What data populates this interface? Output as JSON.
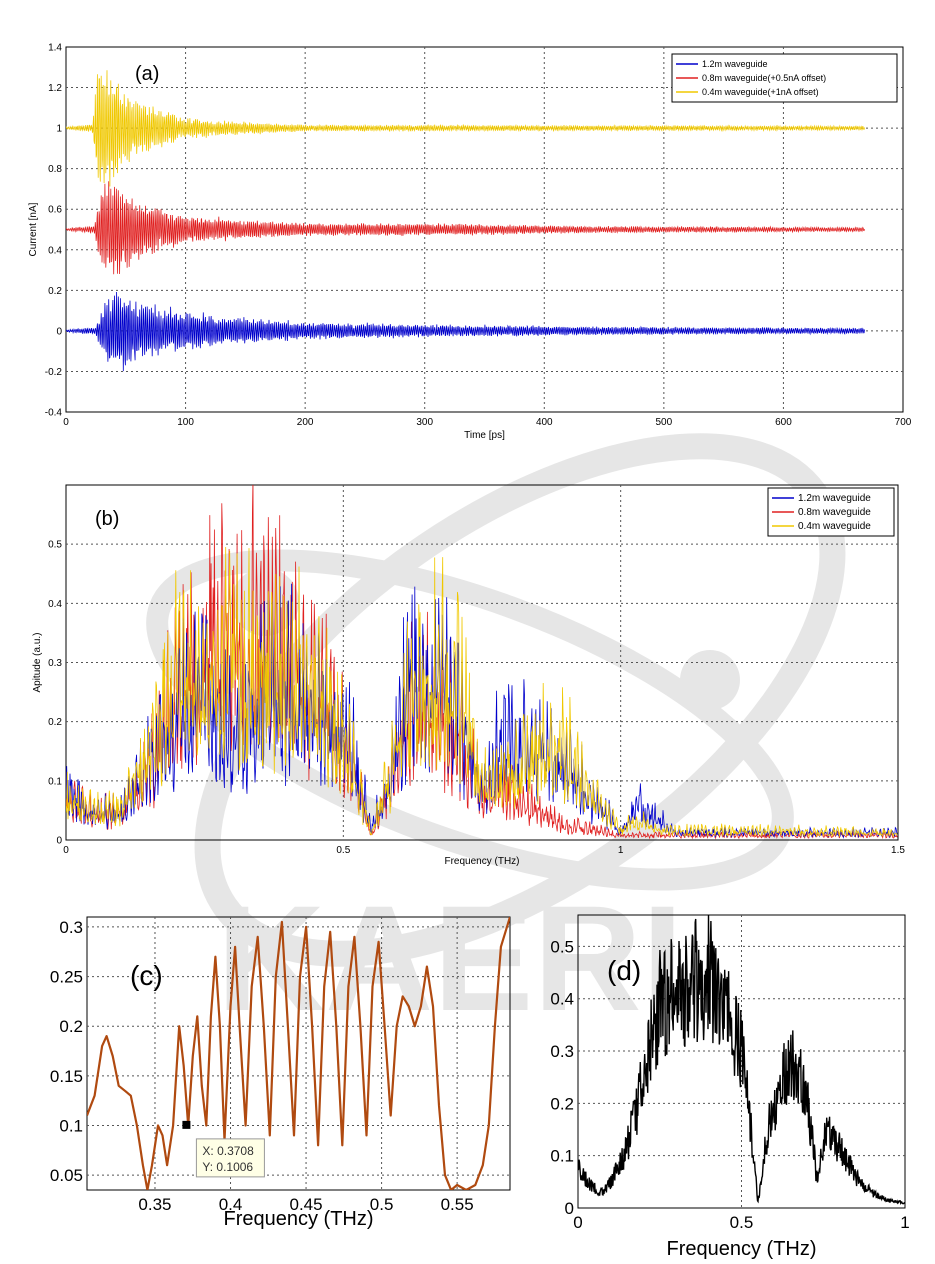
{
  "watermark": {
    "text": "KAERI"
  },
  "chart_data": [
    {
      "id": "a",
      "type": "line",
      "panel_label": "(a)",
      "xlabel": "Time [ps]",
      "ylabel": "Current [nA]",
      "xlim": [
        0,
        700
      ],
      "ylim": [
        -0.4,
        1.4
      ],
      "xticks": [
        0,
        100,
        200,
        300,
        400,
        500,
        600,
        700
      ],
      "yticks": [
        -0.4,
        -0.2,
        0,
        0.2,
        0.4,
        0.6,
        0.8,
        1,
        1.2,
        1.4
      ],
      "grid": true,
      "legend_position": "top-right",
      "series": [
        {
          "name": "1.2m waveguide",
          "color": "#0000cc",
          "offset": 0,
          "env": [
            [
              0,
              0.005
            ],
            [
              25,
              0.02
            ],
            [
              32,
              0.14
            ],
            [
              42,
              0.2
            ],
            [
              60,
              0.13
            ],
            [
              100,
              0.09
            ],
            [
              150,
              0.06
            ],
            [
              200,
              0.04
            ],
            [
              300,
              0.03
            ],
            [
              450,
              0.02
            ],
            [
              600,
              0.015
            ],
            [
              670,
              0.015
            ]
          ]
        },
        {
          "name": "0.8m waveguide(+0.5nA offset)",
          "color": "#e02020",
          "offset": 0.5,
          "env": [
            [
              0,
              0.005
            ],
            [
              24,
              0.02
            ],
            [
              30,
              0.22
            ],
            [
              38,
              0.24
            ],
            [
              60,
              0.14
            ],
            [
              100,
              0.07
            ],
            [
              150,
              0.045
            ],
            [
              200,
              0.03
            ],
            [
              300,
              0.03
            ],
            [
              450,
              0.015
            ],
            [
              670,
              0.01
            ]
          ]
        },
        {
          "name": "0.4m waveguide(+1nA offset)",
          "color": "#f0c800",
          "offset": 1,
          "env": [
            [
              0,
              0.005
            ],
            [
              22,
              0.02
            ],
            [
              28,
              0.34
            ],
            [
              36,
              0.3
            ],
            [
              55,
              0.14
            ],
            [
              100,
              0.05
            ],
            [
              150,
              0.03
            ],
            [
              200,
              0.015
            ],
            [
              300,
              0.015
            ],
            [
              670,
              0.01
            ]
          ]
        }
      ]
    },
    {
      "id": "b",
      "type": "line",
      "panel_label": "(b)",
      "xlabel": "Frequency (THz)",
      "ylabel": "Apitude (a.u.)",
      "xlim": [
        0,
        1.5
      ],
      "ylim": [
        0,
        0.6
      ],
      "xticks": [
        0,
        0.5,
        1,
        1.5
      ],
      "xtick_labels": [
        "0",
        "0.5",
        "1",
        "1.5"
      ],
      "yticks": [
        0,
        0.1,
        0.2,
        0.3,
        0.4,
        0.5
      ],
      "grid": true,
      "legend_position": "top-right",
      "series": [
        {
          "name": "1.2m waveguide",
          "color": "#0000cc",
          "env": [
            [
              0,
              0.1
            ],
            [
              0.05,
              0.06
            ],
            [
              0.1,
              0.05
            ],
            [
              0.15,
              0.16
            ],
            [
              0.2,
              0.24
            ],
            [
              0.25,
              0.3
            ],
            [
              0.3,
              0.2
            ],
            [
              0.35,
              0.28
            ],
            [
              0.4,
              0.3
            ],
            [
              0.45,
              0.28
            ],
            [
              0.5,
              0.23
            ],
            [
              0.53,
              0.12
            ],
            [
              0.55,
              0.02
            ],
            [
              0.58,
              0.12
            ],
            [
              0.62,
              0.32
            ],
            [
              0.65,
              0.35
            ],
            [
              0.7,
              0.27
            ],
            [
              0.75,
              0.1
            ],
            [
              0.78,
              0.18
            ],
            [
              0.8,
              0.2
            ],
            [
              0.85,
              0.18
            ],
            [
              0.9,
              0.16
            ],
            [
              0.95,
              0.08
            ],
            [
              1,
              0.02
            ],
            [
              1.03,
              0.07
            ],
            [
              1.07,
              0.04
            ],
            [
              1.1,
              0.015
            ],
            [
              1.5,
              0.015
            ]
          ]
        },
        {
          "name": "0.8m waveguide",
          "color": "#e02020",
          "env": [
            [
              0,
              0.08
            ],
            [
              0.05,
              0.05
            ],
            [
              0.1,
              0.06
            ],
            [
              0.15,
              0.14
            ],
            [
              0.2,
              0.3
            ],
            [
              0.25,
              0.38
            ],
            [
              0.3,
              0.42
            ],
            [
              0.35,
              0.44
            ],
            [
              0.4,
              0.35
            ],
            [
              0.45,
              0.3
            ],
            [
              0.5,
              0.2
            ],
            [
              0.53,
              0.1
            ],
            [
              0.55,
              0.01
            ],
            [
              0.58,
              0.1
            ],
            [
              0.62,
              0.25
            ],
            [
              0.65,
              0.28
            ],
            [
              0.7,
              0.23
            ],
            [
              0.75,
              0.08
            ],
            [
              0.78,
              0.12
            ],
            [
              0.82,
              0.08
            ],
            [
              0.87,
              0.05
            ],
            [
              0.9,
              0.03
            ],
            [
              1,
              0.01
            ],
            [
              1.5,
              0.01
            ]
          ]
        },
        {
          "name": "0.4m waveguide",
          "color": "#f0c800",
          "env": [
            [
              0,
              0.08
            ],
            [
              0.05,
              0.06
            ],
            [
              0.1,
              0.06
            ],
            [
              0.15,
              0.18
            ],
            [
              0.2,
              0.33
            ],
            [
              0.25,
              0.32
            ],
            [
              0.3,
              0.34
            ],
            [
              0.35,
              0.35
            ],
            [
              0.4,
              0.33
            ],
            [
              0.45,
              0.3
            ],
            [
              0.5,
              0.2
            ],
            [
              0.53,
              0.1
            ],
            [
              0.55,
              0.01
            ],
            [
              0.58,
              0.12
            ],
            [
              0.62,
              0.3
            ],
            [
              0.65,
              0.3
            ],
            [
              0.7,
              0.35
            ],
            [
              0.75,
              0.1
            ],
            [
              0.8,
              0.14
            ],
            [
              0.85,
              0.17
            ],
            [
              0.9,
              0.2
            ],
            [
              0.95,
              0.08
            ],
            [
              1,
              0.02
            ],
            [
              1.03,
              0.04
            ],
            [
              1.07,
              0.02
            ],
            [
              1.5,
              0.015
            ]
          ]
        }
      ]
    },
    {
      "id": "c",
      "type": "line",
      "panel_label": "(c)",
      "xlabel": "Frequency (THz)",
      "xlim": [
        0.305,
        0.585
      ],
      "ylim": [
        0.035,
        0.31
      ],
      "xticks": [
        0.35,
        0.4,
        0.45,
        0.5,
        0.55
      ],
      "xtick_labels": [
        "0.35",
        "0.4",
        "0.45",
        "0.5",
        "0.55"
      ],
      "yticks": [
        0.05,
        0.1,
        0.15,
        0.2,
        0.25,
        0.3
      ],
      "ytick_labels": [
        "0.05",
        "0.1",
        "0.15",
        "0.2",
        "0.25",
        "0.3"
      ],
      "grid": true,
      "series": [
        {
          "color": "#b04a10",
          "points": [
            [
              0.305,
              0.11
            ],
            [
              0.31,
              0.13
            ],
            [
              0.315,
              0.18
            ],
            [
              0.318,
              0.19
            ],
            [
              0.322,
              0.17
            ],
            [
              0.326,
              0.14
            ],
            [
              0.33,
              0.135
            ],
            [
              0.334,
              0.13
            ],
            [
              0.338,
              0.1
            ],
            [
              0.342,
              0.06
            ],
            [
              0.345,
              0.035
            ],
            [
              0.348,
              0.06
            ],
            [
              0.352,
              0.1
            ],
            [
              0.355,
              0.09
            ],
            [
              0.358,
              0.06
            ],
            [
              0.362,
              0.1
            ],
            [
              0.366,
              0.2
            ],
            [
              0.369,
              0.16
            ],
            [
              0.372,
              0.1
            ],
            [
              0.375,
              0.17
            ],
            [
              0.378,
              0.21
            ],
            [
              0.381,
              0.14
            ],
            [
              0.384,
              0.1
            ],
            [
              0.387,
              0.21
            ],
            [
              0.39,
              0.27
            ],
            [
              0.393,
              0.2
            ],
            [
              0.396,
              0.085
            ],
            [
              0.4,
              0.22
            ],
            [
              0.403,
              0.28
            ],
            [
              0.406,
              0.2
            ],
            [
              0.41,
              0.1
            ],
            [
              0.414,
              0.24
            ],
            [
              0.418,
              0.29
            ],
            [
              0.422,
              0.2
            ],
            [
              0.426,
              0.09
            ],
            [
              0.43,
              0.25
            ],
            [
              0.434,
              0.305
            ],
            [
              0.438,
              0.2
            ],
            [
              0.442,
              0.09
            ],
            [
              0.446,
              0.25
            ],
            [
              0.45,
              0.3
            ],
            [
              0.454,
              0.2
            ],
            [
              0.458,
              0.08
            ],
            [
              0.462,
              0.24
            ],
            [
              0.466,
              0.295
            ],
            [
              0.47,
              0.2
            ],
            [
              0.474,
              0.08
            ],
            [
              0.478,
              0.24
            ],
            [
              0.482,
              0.29
            ],
            [
              0.486,
              0.2
            ],
            [
              0.49,
              0.09
            ],
            [
              0.494,
              0.24
            ],
            [
              0.498,
              0.285
            ],
            [
              0.502,
              0.2
            ],
            [
              0.506,
              0.11
            ],
            [
              0.51,
              0.2
            ],
            [
              0.514,
              0.23
            ],
            [
              0.518,
              0.22
            ],
            [
              0.522,
              0.2
            ],
            [
              0.526,
              0.22
            ],
            [
              0.53,
              0.26
            ],
            [
              0.534,
              0.22
            ],
            [
              0.538,
              0.12
            ],
            [
              0.542,
              0.05
            ],
            [
              0.546,
              0.035
            ],
            [
              0.55,
              0.04
            ],
            [
              0.556,
              0.035
            ],
            [
              0.562,
              0.04
            ],
            [
              0.567,
              0.06
            ],
            [
              0.571,
              0.1
            ],
            [
              0.575,
              0.2
            ],
            [
              0.579,
              0.28
            ],
            [
              0.585,
              0.31
            ]
          ]
        }
      ],
      "marker": {
        "x": 0.3708,
        "y": 0.1006
      },
      "datatip": {
        "x_label": "X: 0.3708",
        "y_label": "Y: 0.1006"
      }
    },
    {
      "id": "d",
      "type": "line",
      "panel_label": "(d)",
      "xlabel": "Frequency (THz)",
      "xlim": [
        0,
        1
      ],
      "ylim": [
        0,
        0.56
      ],
      "xticks": [
        0,
        0.5,
        1
      ],
      "xtick_labels": [
        "0",
        "0.5",
        "1"
      ],
      "yticks": [
        0,
        0.1,
        0.2,
        0.3,
        0.4,
        0.5
      ],
      "ytick_labels": [
        "0",
        "0.1",
        "0.2",
        "0.3",
        "0.4",
        "0.5"
      ],
      "grid": true,
      "series": [
        {
          "color": "#000000",
          "env": [
            [
              0,
              0.08
            ],
            [
              0.03,
              0.05
            ],
            [
              0.07,
              0.03
            ],
            [
              0.1,
              0.05
            ],
            [
              0.15,
              0.12
            ],
            [
              0.2,
              0.25
            ],
            [
              0.25,
              0.4
            ],
            [
              0.3,
              0.42
            ],
            [
              0.35,
              0.45
            ],
            [
              0.4,
              0.45
            ],
            [
              0.45,
              0.38
            ],
            [
              0.5,
              0.3
            ],
            [
              0.53,
              0.15
            ],
            [
              0.55,
              0.01
            ],
            [
              0.58,
              0.15
            ],
            [
              0.62,
              0.25
            ],
            [
              0.65,
              0.3
            ],
            [
              0.7,
              0.22
            ],
            [
              0.73,
              0.06
            ],
            [
              0.76,
              0.15
            ],
            [
              0.8,
              0.12
            ],
            [
              0.85,
              0.06
            ],
            [
              0.9,
              0.03
            ],
            [
              0.95,
              0.015
            ],
            [
              1,
              0.01
            ]
          ]
        }
      ]
    }
  ]
}
